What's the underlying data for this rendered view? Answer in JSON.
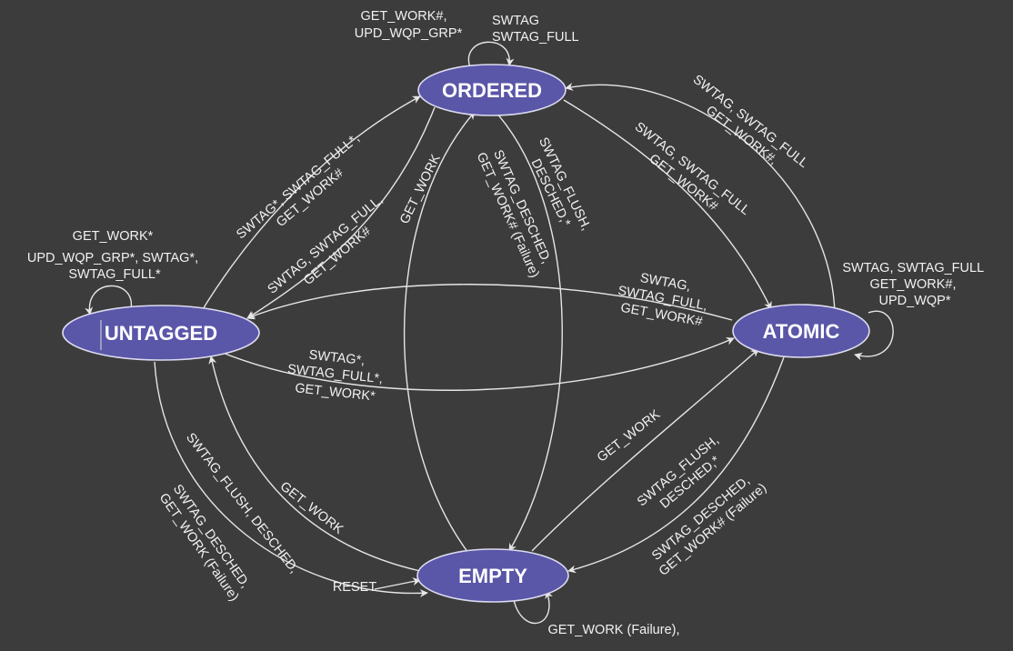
{
  "colors": {
    "background": "#3c3c3c",
    "state_fill": "#5a56a8",
    "edge": "#e6e6e6",
    "text": "#f2f2f2"
  },
  "states": {
    "ordered": "ORDERED",
    "untagged": "UNTAGGED",
    "atomic": "ATOMIC",
    "empty": "EMPTY"
  },
  "labels": {
    "ordered_self": [
      "SWTAG",
      "SWTAG_FULL"
    ],
    "ordered_self_upd": [
      "GET_WORK#,",
      "UPD_WQP_GRP*"
    ],
    "untagged_self": [
      "GET_WORK*",
      "UPD_WQP_GRP*, SWTAG*,",
      "SWTAG_FULL*"
    ],
    "untagged_to_ordered": [
      "SWTAG*, SWTAG_FULL*,",
      "GET_WORK#"
    ],
    "ordered_to_untagged": [
      "SWTAG, SWTAG_FULL,",
      "GET_WORK#"
    ],
    "empty_to_ordered": [
      "GET_WORK"
    ],
    "ordered_to_empty_desched": [
      "SWTAG_DESCHED,",
      "GET_WORK# (Failure)"
    ],
    "ordered_to_empty_flush": [
      "SWTAG_FLUSH,",
      "DESCHED,*"
    ],
    "ordered_to_atomic": [
      "SWTAG, SWTAG_FULL",
      "GET_WORK#"
    ],
    "atomic_to_ordered": [
      "SWTAG, SWTAG_FULL",
      "GET_WORK#,"
    ],
    "atomic_self": [
      "SWTAG, SWTAG_FULL",
      "GET_WORK#,",
      "UPD_WQP*"
    ],
    "atomic_to_untagged": [
      "SWTAG,",
      "SWTAG_FULL,",
      "GET_WORK#"
    ],
    "untagged_to_atomic": [
      "SWTAG*,",
      "SWTAG_FULL*,",
      "GET_WORK*"
    ],
    "empty_to_atomic": [
      "GET_WORK"
    ],
    "atomic_to_empty_flush": [
      "SWTAG_FLUSH,",
      "DESCHED,*"
    ],
    "atomic_to_empty_desched": [
      "SWTAG_DESCHED,",
      "GET_WORK# (Failure)"
    ],
    "empty_to_untagged": [
      "GET_WORK"
    ],
    "untagged_to_empty_flush": [
      "SWTAG_FLUSH, DESCHED,"
    ],
    "untagged_to_empty_desched": [
      "SWTAG_DESCHED,",
      "GET_WORK (Failure)"
    ],
    "reset": [
      "RESET"
    ],
    "empty_self": [
      "GET_WORK (Failure),"
    ]
  }
}
